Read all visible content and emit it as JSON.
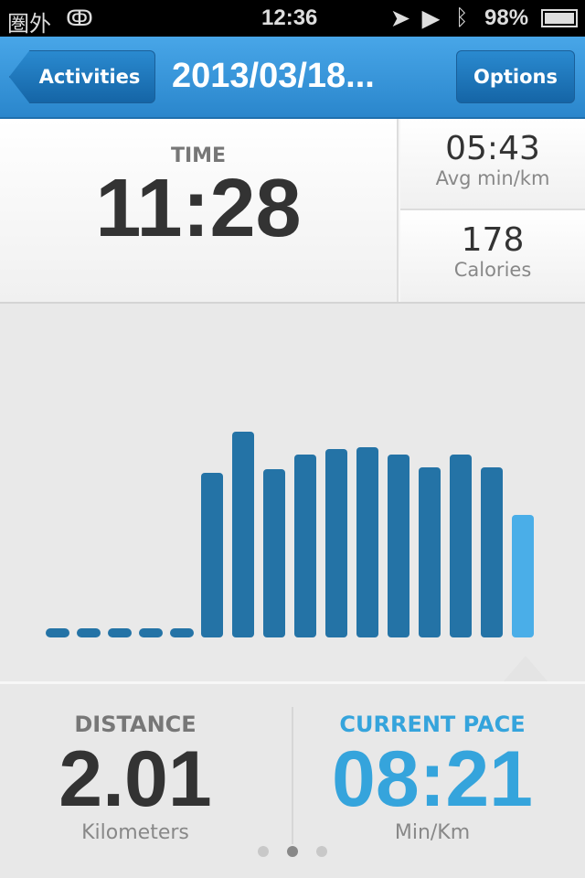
{
  "status_bar": {
    "carrier": "圏外",
    "time": "12:36",
    "battery": "98%"
  },
  "nav": {
    "back_label": "Activities",
    "title": "2013/03/18...",
    "options_label": "Options"
  },
  "summary": {
    "time_label": "TIME",
    "time_value": "11:28",
    "avg_pace_value": "05:43",
    "avg_pace_unit": "Avg min/km",
    "calories_value": "178",
    "calories_unit": "Calories"
  },
  "chart_data": {
    "type": "bar",
    "values": [
      0,
      0,
      0,
      0,
      0,
      180,
      225,
      184,
      200,
      206,
      208,
      200,
      186,
      200,
      186,
      134
    ],
    "highlighted_index": 15,
    "colors": {
      "bar": "#2473a6",
      "highlight": "#4aaee8"
    }
  },
  "stats": {
    "distance_label": "DISTANCE",
    "distance_value": "2.01",
    "distance_unit": "Kilometers",
    "pace_label": "CURRENT PACE",
    "pace_value": "08:21",
    "pace_unit": "Min/Km"
  },
  "pager": {
    "count": 3,
    "active": 1
  }
}
